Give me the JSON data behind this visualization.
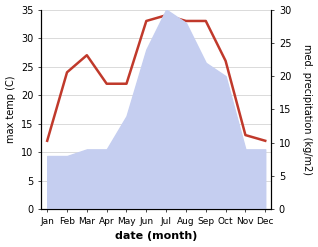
{
  "months": [
    "Jan",
    "Feb",
    "Mar",
    "Apr",
    "May",
    "Jun",
    "Jul",
    "Aug",
    "Sep",
    "Oct",
    "Nov",
    "Dec"
  ],
  "temperature": [
    12,
    24,
    27,
    22,
    22,
    33,
    34,
    33,
    33,
    26,
    13,
    12
  ],
  "precipitation": [
    8,
    8,
    9,
    9,
    14,
    24,
    30,
    28,
    22,
    20,
    9,
    9
  ],
  "temp_color": "#c0392b",
  "precip_fill_color": "#c5cef0",
  "precip_line_color": "#c5cef0",
  "ylim_temp": [
    0,
    35
  ],
  "ylim_precip": [
    0,
    30
  ],
  "xlabel": "date (month)",
  "ylabel_left": "max temp (C)",
  "ylabel_right": "med. precipitation (kg/m2)",
  "figsize": [
    3.18,
    2.47
  ],
  "dpi": 100
}
